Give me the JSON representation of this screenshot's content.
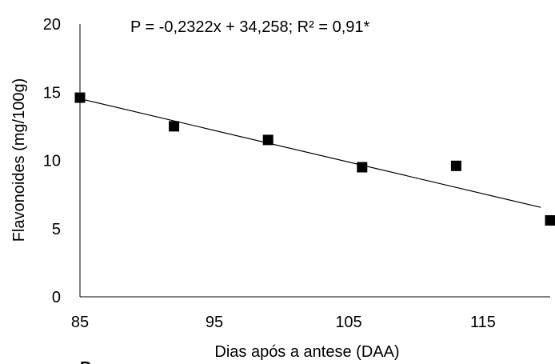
{
  "chart_data": {
    "type": "scatter",
    "xlabel": "Dias após a antese (DAA)",
    "ylabel": "Flavonoides (mg/100g)",
    "xlim": [
      85,
      120
    ],
    "ylim": [
      0,
      20
    ],
    "x_ticks": [
      85,
      95,
      105,
      115
    ],
    "y_ticks": [
      0,
      5,
      10,
      15,
      20
    ],
    "x_tick_labels": [
      "85",
      "95",
      "105",
      "115"
    ],
    "y_tick_labels": [
      "0",
      "5",
      "10",
      "15",
      "20"
    ],
    "series": [
      {
        "x": [
          85,
          92,
          99,
          106,
          113,
          120
        ],
        "y": [
          14.6,
          12.5,
          11.5,
          9.5,
          9.6,
          5.6
        ],
        "marker": "square",
        "color": "#000000"
      }
    ],
    "trendline": {
      "slope": -0.2322,
      "intercept": 34.258,
      "equation": "P = -0,2322x + 34,258; R² = 0,91*"
    },
    "grid": false,
    "legend": "none"
  },
  "panel_letter": "B"
}
